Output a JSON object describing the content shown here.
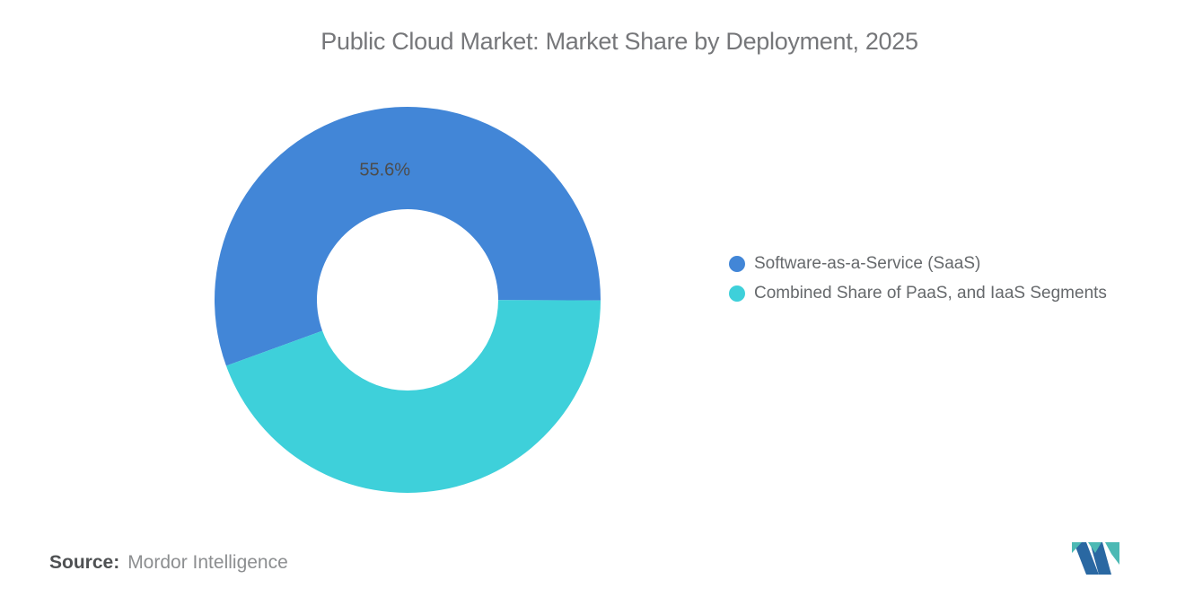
{
  "chart_data": {
    "type": "pie",
    "donut": true,
    "title": "Public Cloud Market: Market Share by Deployment, 2025",
    "categories": [
      "Software-as-a-Service (SaaS)",
      "Combined Share of PaaS, and IaaS Segments"
    ],
    "values": [
      55.6,
      44.4
    ],
    "unit": "%",
    "colors": [
      "#4286d7",
      "#3ed0da"
    ],
    "point_labels": [
      "55.6%",
      ""
    ],
    "start_angle_deg": -110,
    "inner_radius_ratio": 0.47,
    "legend_position": "right-middle"
  },
  "source": {
    "label": "Source:",
    "value": "Mordor Intelligence"
  },
  "brand": {
    "logo_blue": "#2a68a2",
    "logo_teal": "#4cb9b4"
  }
}
